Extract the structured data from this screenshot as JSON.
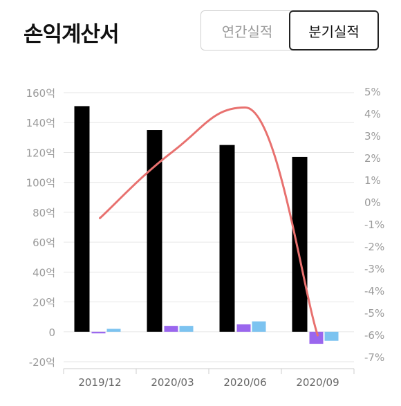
{
  "page": {
    "title": "손익계산서"
  },
  "toggle": {
    "yearly_label": "연간실적",
    "quarterly_label": "분기실적",
    "selected": "quarterly"
  },
  "colors": {
    "bar_primary": "#000000",
    "bar_purple": "#9a66ee",
    "bar_blue": "#7cc3f0",
    "line": "#e8716f",
    "gridline": "#e6e6e6",
    "axis_text": "#9a9a9a"
  },
  "chart_data": {
    "type": "bar",
    "categories": [
      "2019/12",
      "2020/03",
      "2020/06",
      "2020/09"
    ],
    "series": [
      {
        "values": [
          151,
          135,
          125,
          117
        ],
        "color": "#000000",
        "axis": "left"
      },
      {
        "values": [
          -1,
          4,
          5,
          -8
        ],
        "color": "#9a66ee",
        "axis": "left"
      },
      {
        "values": [
          2,
          4,
          7,
          -6
        ],
        "color": "#7cc3f0",
        "axis": "left"
      },
      {
        "type": "line",
        "values": [
          -0.7,
          2.3,
          4.3,
          -6.0
        ],
        "color": "#e8716f",
        "axis": "right"
      }
    ],
    "y_left": {
      "ticks": [
        "160억",
        "140억",
        "120억",
        "100억",
        "80억",
        "60억",
        "40억",
        "20억",
        "0",
        "-20억"
      ],
      "min": -20,
      "max": 160,
      "step": 20
    },
    "y_right": {
      "ticks": [
        "5%",
        "4%",
        "3%",
        "2%",
        "1%",
        "0%",
        "-1%",
        "-2%",
        "-3%",
        "-4%",
        "-5%",
        "-6%",
        "-7%"
      ],
      "min": -7,
      "max": 5,
      "step": 1
    },
    "grid": true
  }
}
